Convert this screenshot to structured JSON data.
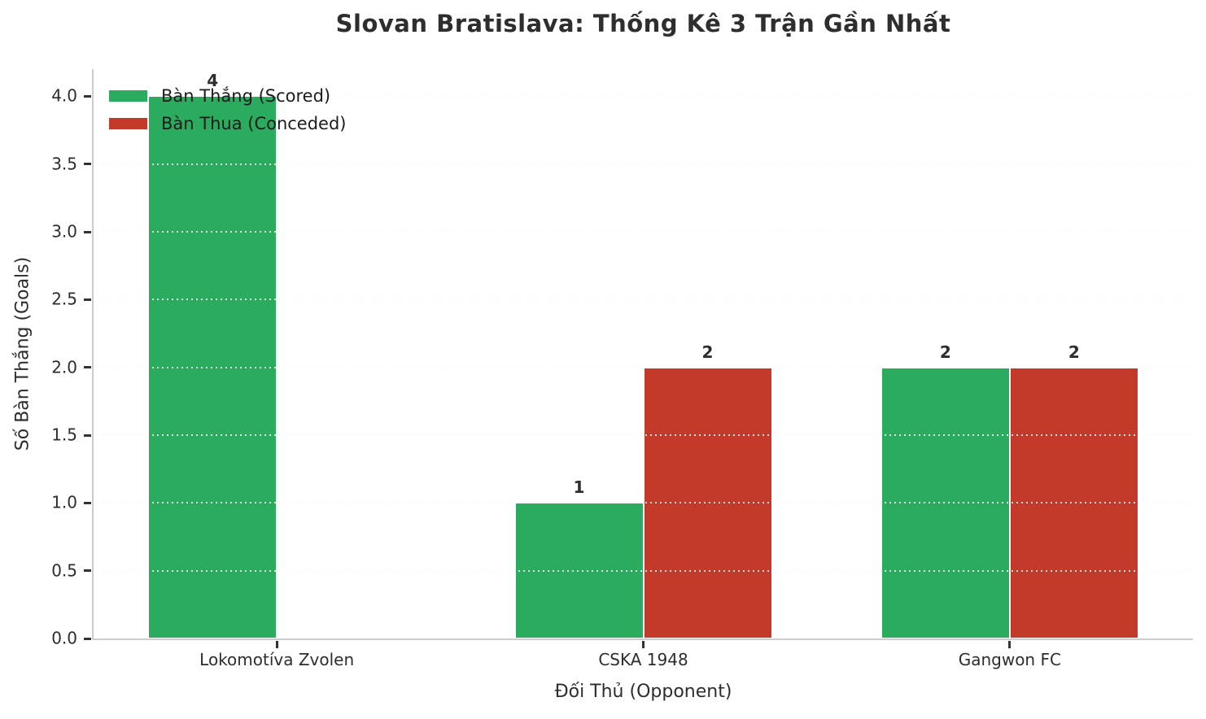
{
  "title": "Slovan Bratislava: Thống Kê 3 Trận Gần Nhất",
  "chart_data": {
    "type": "bar",
    "title": "Slovan Bratislava: Thống Kê 3 Trận Gần Nhất",
    "categories": [
      "Lokomotíva Zvolen",
      "CSKA 1948",
      "Gangwon FC"
    ],
    "series": [
      {
        "name": "Bàn Thắng (Scored)",
        "color": "#2bab5e",
        "values": [
          4,
          1,
          2
        ]
      },
      {
        "name": "Bàn Thua (Conceded)",
        "color": "#c33a2b",
        "values": [
          0,
          2,
          2
        ]
      }
    ],
    "bar_value_labels": [
      [
        "4",
        "1",
        "2"
      ],
      [
        "",
        "2",
        "2"
      ]
    ],
    "xlabel": "Đối Thủ (Opponent)",
    "ylabel": "Số Bàn Thắng (Goals)",
    "ylim": [
      0,
      4.2
    ],
    "yticks": [
      "0.0",
      "0.5",
      "1.0",
      "1.5",
      "2.0",
      "2.5",
      "3.0",
      "3.5",
      "4.0"
    ],
    "grid": "horizontal-dotted",
    "legend_position": "upper-left"
  },
  "colors": {
    "scored": "#2bab5e",
    "conceded": "#c33a2b",
    "spine": "#cccccc",
    "text": "#2d2d2d"
  }
}
